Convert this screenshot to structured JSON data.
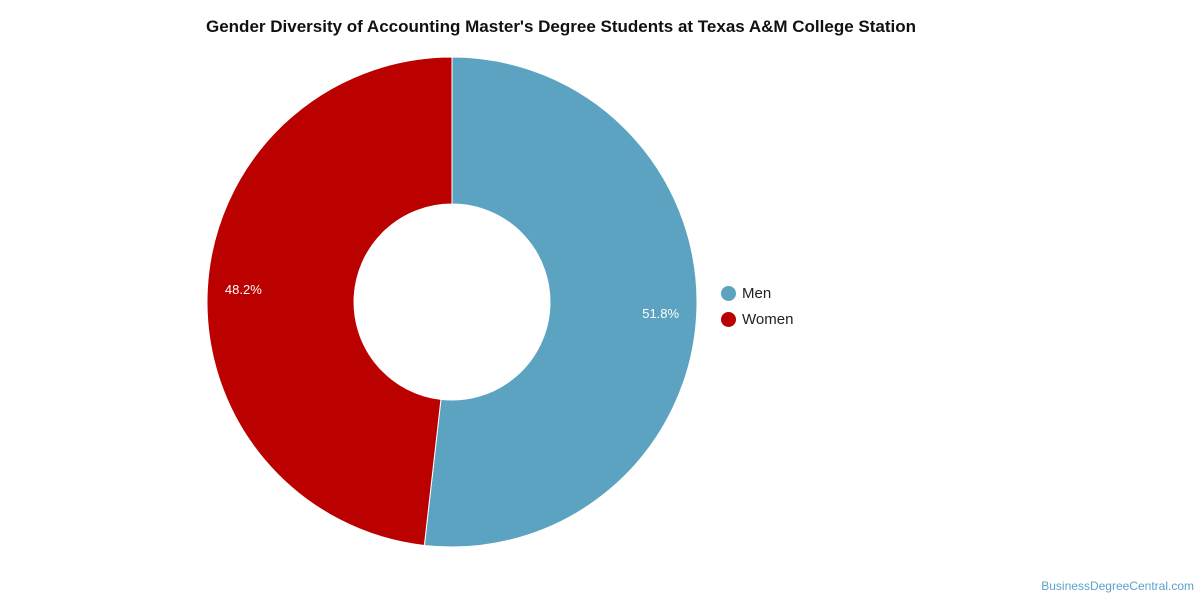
{
  "chart_data": {
    "type": "pie",
    "title": "Gender Diversity of Accounting Master's Degree Students at Texas A&M College Station",
    "donut": true,
    "slices": [
      {
        "label": "Men",
        "value": 51.8,
        "display": "51.8%",
        "color": "#5ba3c0"
      },
      {
        "label": "Women",
        "value": 48.2,
        "display": "48.2%",
        "color": "#bb0000"
      }
    ],
    "legend": "right"
  },
  "watermark": "BusinessDegreeCentral.com"
}
